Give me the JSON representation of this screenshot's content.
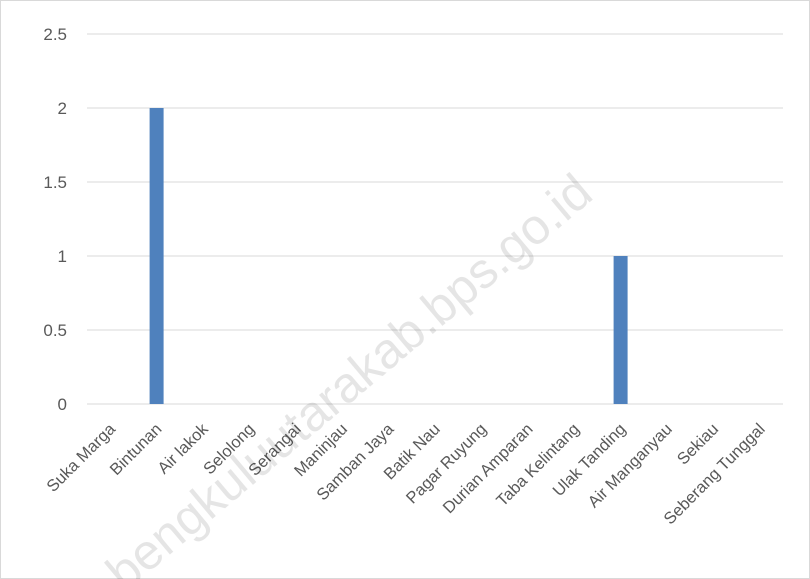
{
  "chart_data": {
    "type": "bar",
    "categories": [
      "Suka Marga",
      "Bintunan",
      "Air lakok",
      "Selolong",
      "Serangai",
      "Maninjau",
      "Samban Jaya",
      "Batik Nau",
      "Pagar Ruyung",
      "Durian Amparan",
      "Taba Kelintang",
      "Ulak Tanding",
      "Air Manganyau",
      "Sekiau",
      "Seberang Tunggal"
    ],
    "values": [
      0,
      2,
      0,
      0,
      0,
      0,
      0,
      0,
      0,
      0,
      0,
      1,
      0,
      0,
      0
    ],
    "yticks": [
      "0",
      "0.5",
      "1",
      "1.5",
      "2",
      "2.5"
    ],
    "ylim": [
      0,
      2.5
    ],
    "grid": true,
    "legend": "none",
    "bar_color": "#4f81bd",
    "grid_color": "#d9d9d9"
  },
  "watermark": "bengkuluutarakab.bps.go.id"
}
